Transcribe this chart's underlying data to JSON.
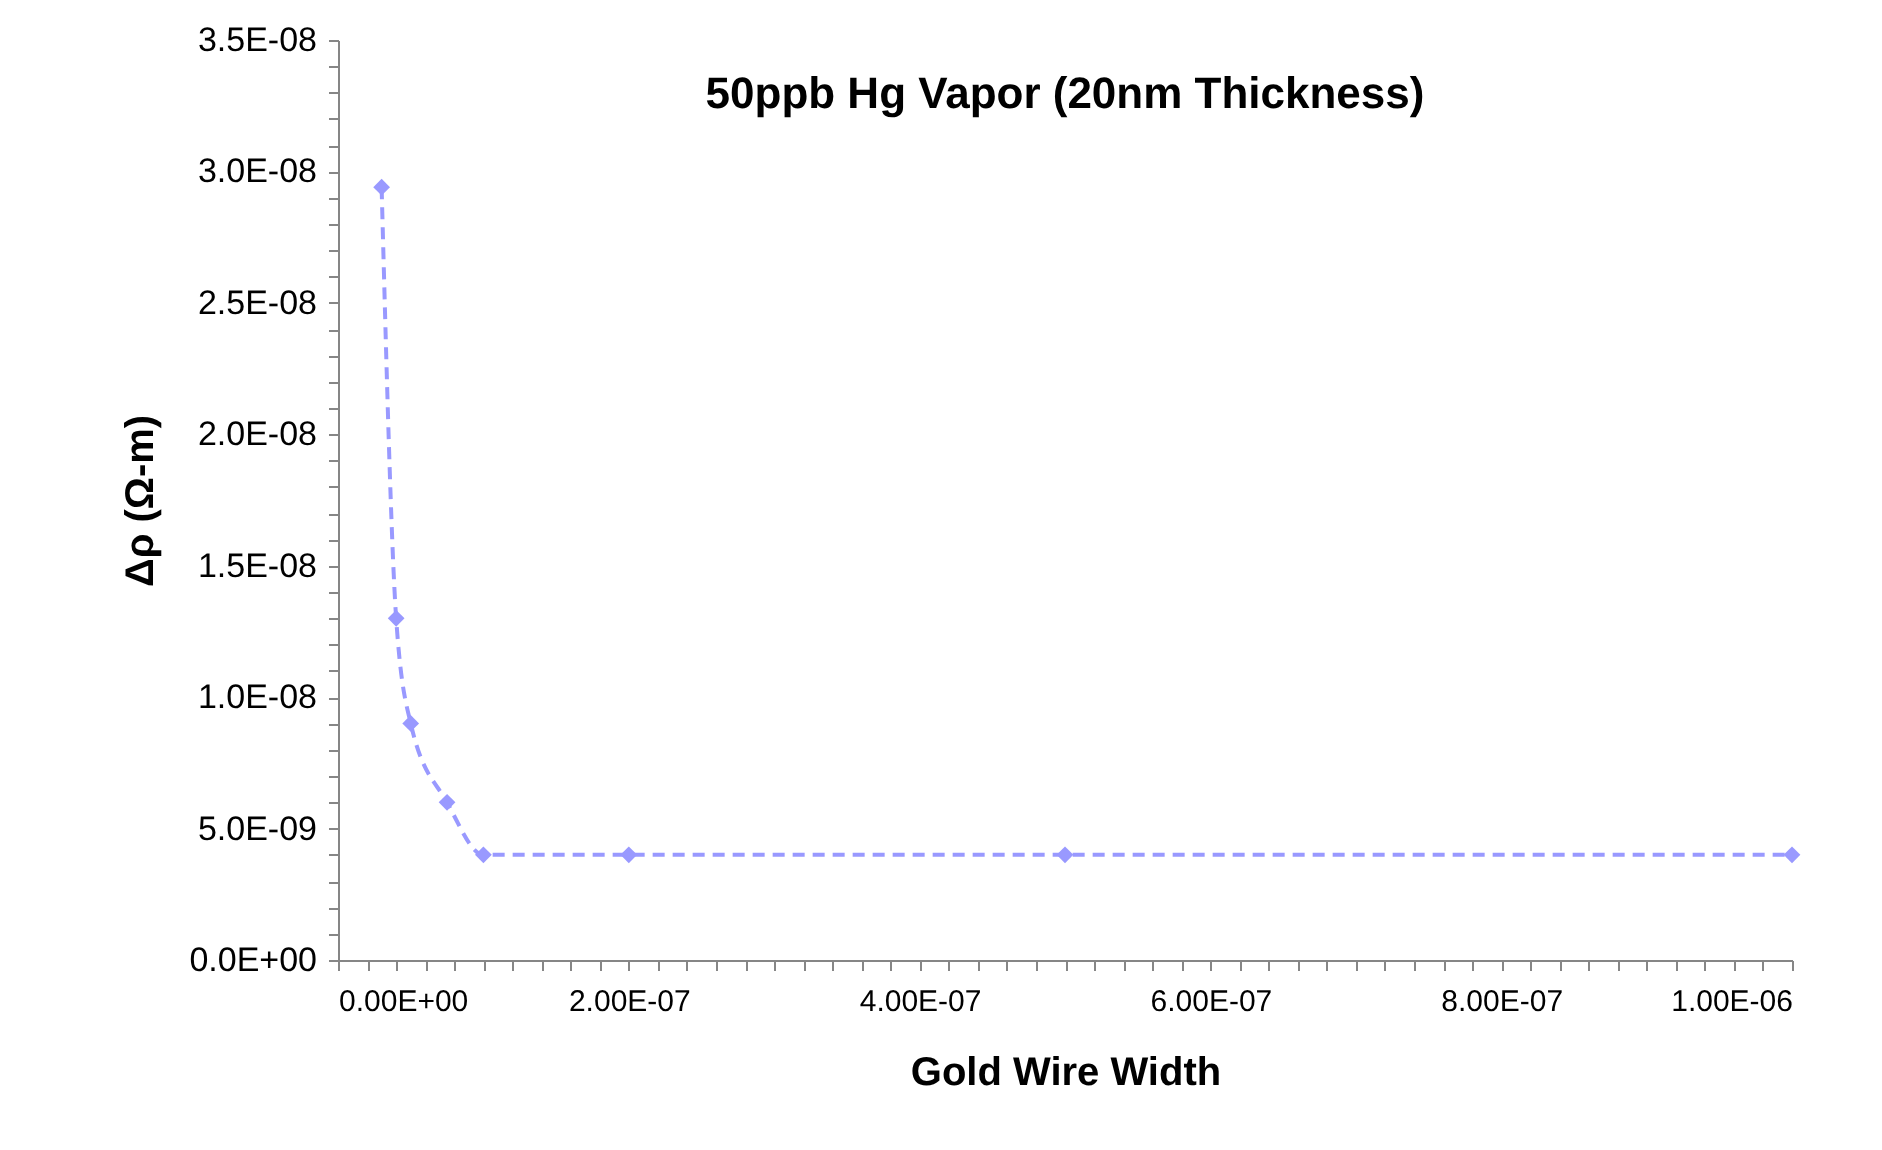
{
  "chart_data": {
    "type": "line",
    "title": "50ppb Hg Vapor (20nm Thickness)",
    "xlabel": "Gold Wire Width",
    "ylabel": "Δρ (Ω-m)",
    "x": [
      3e-08,
      4e-08,
      5e-08,
      7.5e-08,
      1e-07,
      2e-07,
      5e-07,
      1e-06
    ],
    "series": [
      {
        "color": "#9999ff",
        "values": [
          2.94e-08,
          1.3e-08,
          9e-09,
          6e-09,
          4e-09,
          4e-09,
          4e-09,
          4e-09
        ]
      }
    ],
    "marker": "diamond",
    "line_style": "dashed",
    "grid": false,
    "legend": false,
    "xlim": [
      0,
      1e-06
    ],
    "ylim": [
      0,
      3.5e-08
    ],
    "xticks": [
      {
        "value": 0,
        "label": "0.00E+00"
      },
      {
        "value": 2e-08,
        "label": null
      },
      {
        "value": 4e-08,
        "label": null
      },
      {
        "value": 6e-08,
        "label": null
      },
      {
        "value": 8e-08,
        "label": null
      },
      {
        "value": 1e-07,
        "label": null
      },
      {
        "value": 1.2e-07,
        "label": null
      },
      {
        "value": 1.4e-07,
        "label": null
      },
      {
        "value": 1.6e-07,
        "label": null
      },
      {
        "value": 1.8e-07,
        "label": null
      },
      {
        "value": 2e-07,
        "label": "2.00E-07"
      },
      {
        "value": 2.2e-07,
        "label": null
      },
      {
        "value": 2.4e-07,
        "label": null
      },
      {
        "value": 2.6e-07,
        "label": null
      },
      {
        "value": 2.8e-07,
        "label": null
      },
      {
        "value": 3e-07,
        "label": null
      },
      {
        "value": 3.2e-07,
        "label": null
      },
      {
        "value": 3.4e-07,
        "label": null
      },
      {
        "value": 3.6e-07,
        "label": null
      },
      {
        "value": 3.8e-07,
        "label": null
      },
      {
        "value": 4e-07,
        "label": "4.00E-07"
      },
      {
        "value": 4.2e-07,
        "label": null
      },
      {
        "value": 4.4e-07,
        "label": null
      },
      {
        "value": 4.6e-07,
        "label": null
      },
      {
        "value": 4.8e-07,
        "label": null
      },
      {
        "value": 5e-07,
        "label": null
      },
      {
        "value": 5.2e-07,
        "label": null
      },
      {
        "value": 5.4e-07,
        "label": null
      },
      {
        "value": 5.6e-07,
        "label": null
      },
      {
        "value": 5.8e-07,
        "label": null
      },
      {
        "value": 6e-07,
        "label": "6.00E-07"
      },
      {
        "value": 6.2e-07,
        "label": null
      },
      {
        "value": 6.4e-07,
        "label": null
      },
      {
        "value": 6.6e-07,
        "label": null
      },
      {
        "value": 6.8e-07,
        "label": null
      },
      {
        "value": 7e-07,
        "label": null
      },
      {
        "value": 7.2e-07,
        "label": null
      },
      {
        "value": 7.4e-07,
        "label": null
      },
      {
        "value": 7.6e-07,
        "label": null
      },
      {
        "value": 7.8e-07,
        "label": null
      },
      {
        "value": 8e-07,
        "label": "8.00E-07"
      },
      {
        "value": 8.2e-07,
        "label": null
      },
      {
        "value": 8.4e-07,
        "label": null
      },
      {
        "value": 8.6e-07,
        "label": null
      },
      {
        "value": 8.8e-07,
        "label": null
      },
      {
        "value": 9e-07,
        "label": null
      },
      {
        "value": 9.2e-07,
        "label": null
      },
      {
        "value": 9.4e-07,
        "label": null
      },
      {
        "value": 9.6e-07,
        "label": null
      },
      {
        "value": 9.8e-07,
        "label": null
      },
      {
        "value": 1e-06,
        "label": "1.00E-06"
      }
    ],
    "yticks": [
      {
        "value": 0,
        "label": "0.0E+00"
      },
      {
        "value": 1e-09,
        "label": null
      },
      {
        "value": 2e-09,
        "label": null
      },
      {
        "value": 3e-09,
        "label": null
      },
      {
        "value": 4e-09,
        "label": null
      },
      {
        "value": 5e-09,
        "label": "5.0E-09"
      },
      {
        "value": 6e-09,
        "label": null
      },
      {
        "value": 7e-09,
        "label": null
      },
      {
        "value": 8e-09,
        "label": null
      },
      {
        "value": 9e-09,
        "label": null
      },
      {
        "value": 1e-08,
        "label": "1.0E-08"
      },
      {
        "value": 1.1e-08,
        "label": null
      },
      {
        "value": 1.2e-08,
        "label": null
      },
      {
        "value": 1.3e-08,
        "label": null
      },
      {
        "value": 1.4e-08,
        "label": null
      },
      {
        "value": 1.5e-08,
        "label": "1.5E-08"
      },
      {
        "value": 1.6e-08,
        "label": null
      },
      {
        "value": 1.7e-08,
        "label": null
      },
      {
        "value": 1.8e-08,
        "label": null
      },
      {
        "value": 1.9e-08,
        "label": null
      },
      {
        "value": 2e-08,
        "label": "2.0E-08"
      },
      {
        "value": 2.1e-08,
        "label": null
      },
      {
        "value": 2.2e-08,
        "label": null
      },
      {
        "value": 2.3e-08,
        "label": null
      },
      {
        "value": 2.4e-08,
        "label": null
      },
      {
        "value": 2.5e-08,
        "label": "2.5E-08"
      },
      {
        "value": 2.6e-08,
        "label": null
      },
      {
        "value": 2.7e-08,
        "label": null
      },
      {
        "value": 2.8e-08,
        "label": null
      },
      {
        "value": 2.9e-08,
        "label": null
      },
      {
        "value": 3e-08,
        "label": "3.0E-08"
      },
      {
        "value": 3.1e-08,
        "label": null
      },
      {
        "value": 3.2e-08,
        "label": null
      },
      {
        "value": 3.3e-08,
        "label": null
      },
      {
        "value": 3.4e-08,
        "label": null
      },
      {
        "value": 3.5e-08,
        "label": "3.5E-08"
      }
    ]
  }
}
